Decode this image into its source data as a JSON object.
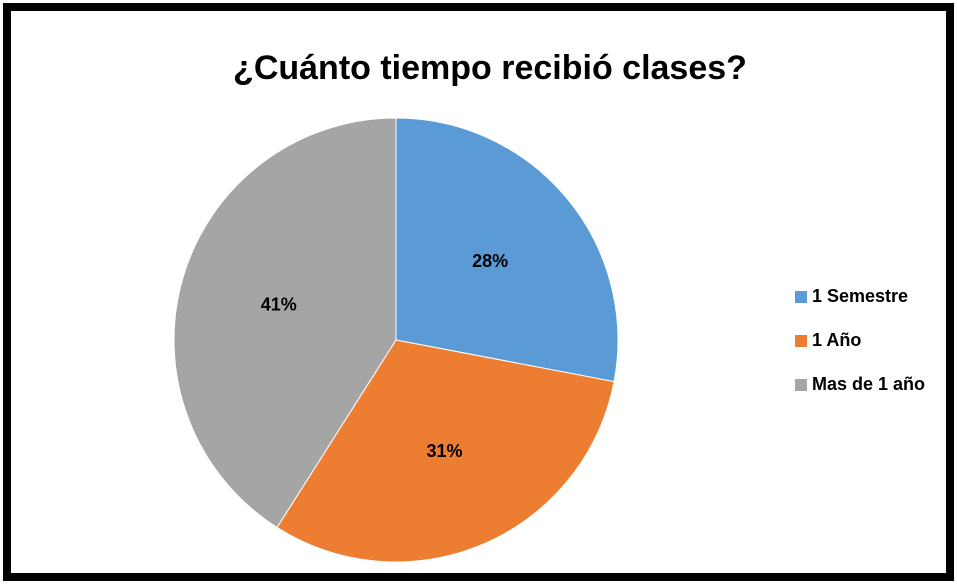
{
  "chart_data": {
    "type": "pie",
    "title": "¿Cuánto tiempo recibió clases?",
    "categories": [
      "1 Semestre",
      "1 Año",
      "Mas de 1 año"
    ],
    "values": [
      28,
      31,
      41
    ],
    "value_labels": [
      "28%",
      "31%",
      "41%"
    ],
    "colors": [
      "#5b9bd5",
      "#ed7d31",
      "#a5a5a5"
    ],
    "legend": "right"
  }
}
